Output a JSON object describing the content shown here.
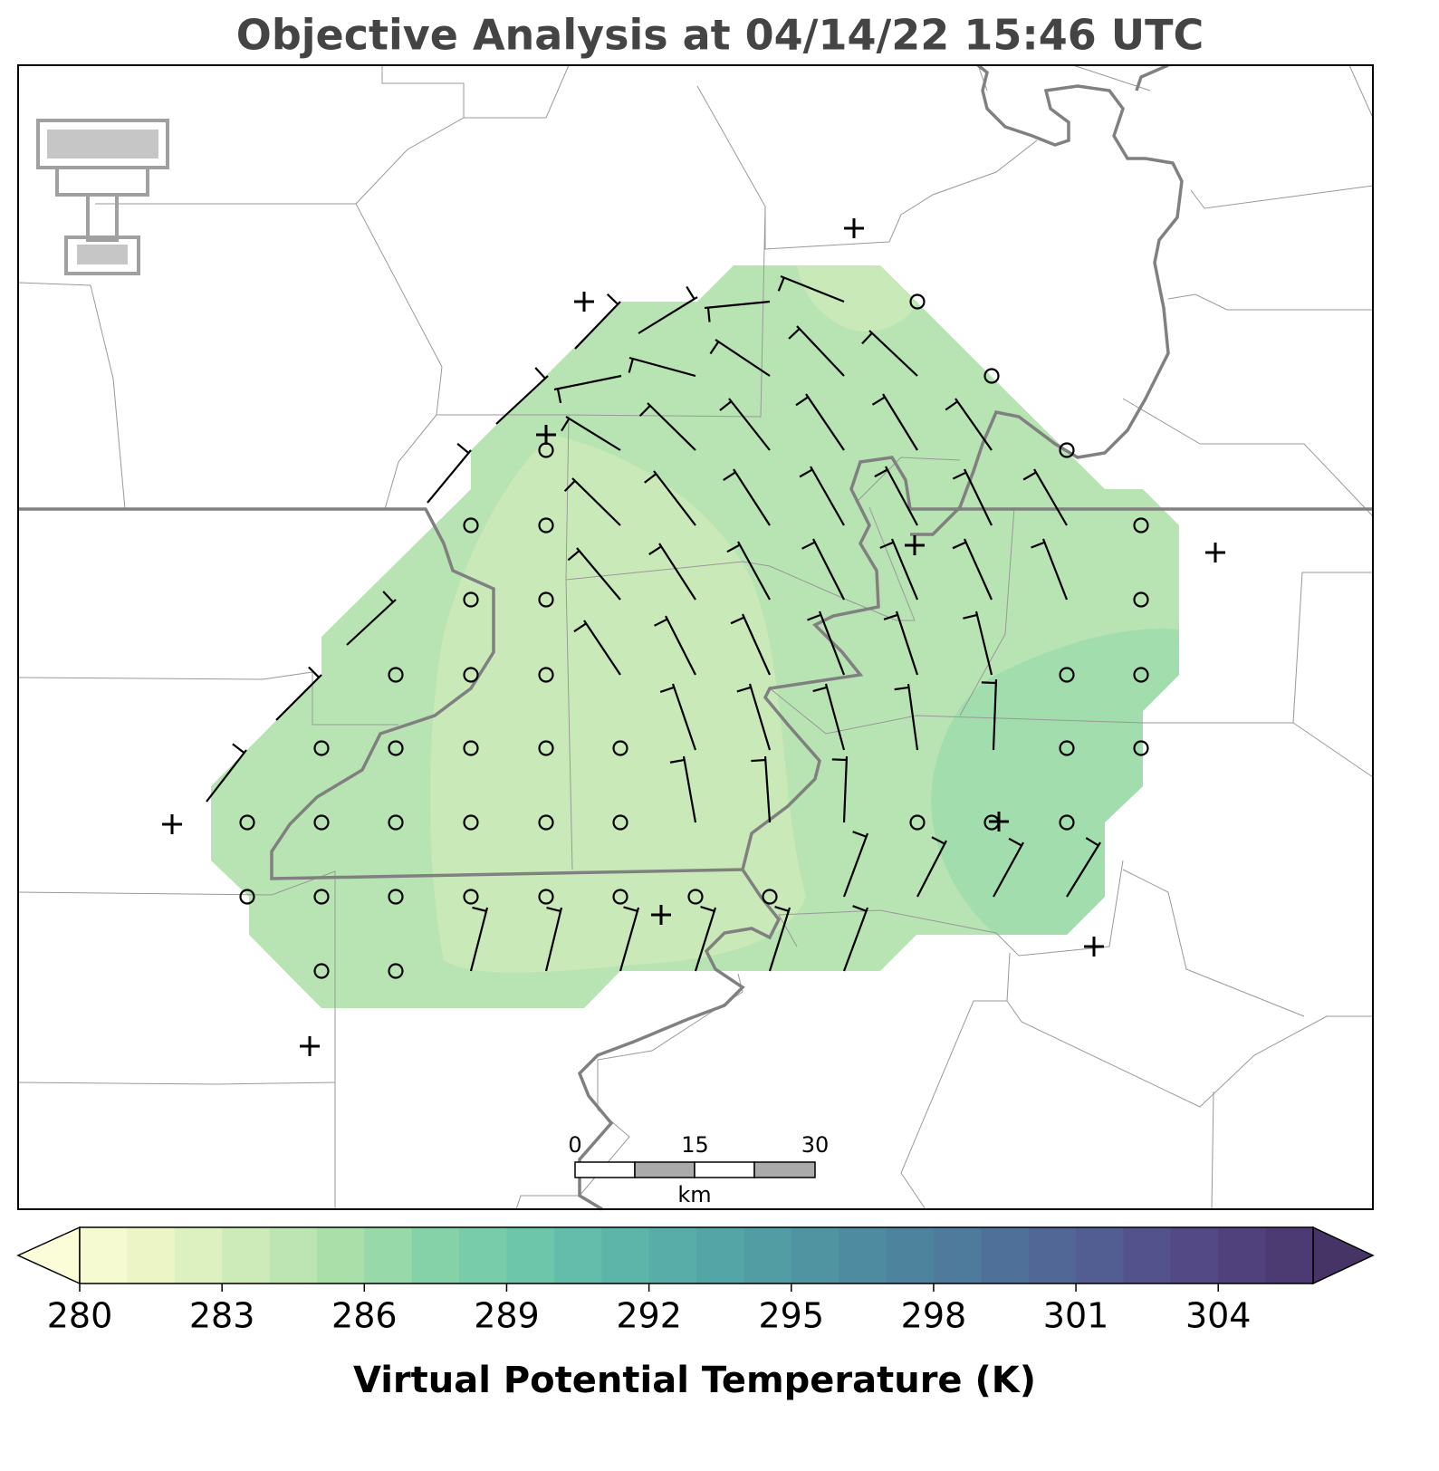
{
  "title": "Objective Analysis at 04/14/22 15:46 UTC",
  "scale_bar": {
    "ticks": [
      0,
      15,
      30
    ],
    "unit": "km"
  },
  "colorbar": {
    "label": "Virtual Potential Temperature (K)",
    "levels": [
      280,
      281,
      282,
      283,
      284,
      285,
      286,
      287,
      288,
      289,
      290,
      291,
      292,
      293,
      294,
      295,
      296,
      297,
      298,
      299,
      300,
      301,
      302,
      303,
      304,
      305,
      306
    ],
    "ticks": [
      280,
      283,
      286,
      289,
      292,
      295,
      298,
      301,
      304
    ],
    "colors": [
      "#f6fad0",
      "#ecf5c6",
      "#ddf0bf",
      "#cdeab9",
      "#bde5b3",
      "#aadfaa",
      "#97d9a8",
      "#86d2a8",
      "#78cca9",
      "#6dc5aa",
      "#64bdaa",
      "#5db5a9",
      "#58ada8",
      "#54a5a6",
      "#529ca4",
      "#5094a2",
      "#4f8ba0",
      "#4e839e",
      "#4e7a9c",
      "#4f7199",
      "#516796",
      "#525d92",
      "#53528c",
      "#524985",
      "#50417c",
      "#4c3a72"
    ],
    "extend_colors": [
      "#fbfdd8",
      "#473466"
    ]
  }
}
